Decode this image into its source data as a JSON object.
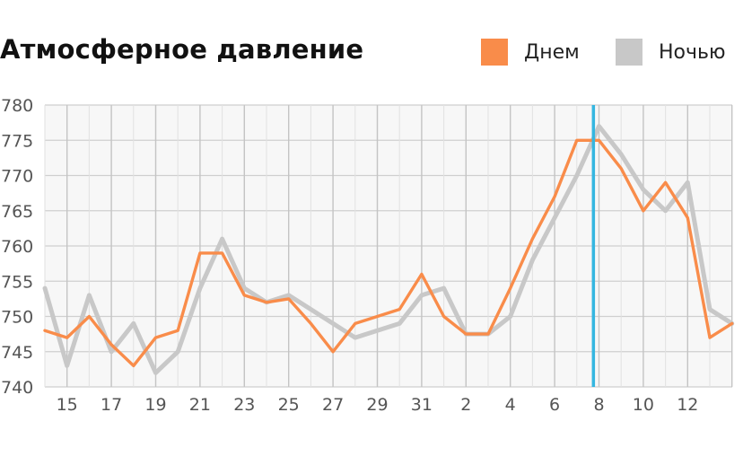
{
  "chart_data": {
    "type": "line",
    "title": "Атмосферное давление",
    "xlabel": "",
    "ylabel": "",
    "ylim": [
      740,
      780
    ],
    "yticks": [
      740,
      745,
      750,
      755,
      760,
      765,
      770,
      775,
      780
    ],
    "grid": true,
    "legend": "top-right",
    "x": [
      "14",
      "15",
      "16",
      "17",
      "18",
      "19",
      "20",
      "21",
      "22",
      "23",
      "24",
      "25",
      "26",
      "27",
      "28",
      "29",
      "30",
      "31",
      "1",
      "2",
      "3",
      "4",
      "5",
      "6",
      "7",
      "8",
      "9",
      "10",
      "11",
      "12",
      "13",
      "14"
    ],
    "xtick_labels": [
      "15",
      "17",
      "19",
      "21",
      "23",
      "25",
      "27",
      "29",
      "31",
      "2",
      "4",
      "6",
      "8",
      "10",
      "12"
    ],
    "current_index": 24.75,
    "series": [
      {
        "name": "Днем",
        "color": "#f98c4a",
        "values": [
          748,
          747,
          750,
          746,
          743,
          747,
          748,
          759,
          759,
          753,
          752,
          752.5,
          749,
          745,
          749,
          750,
          751,
          756,
          750,
          747.5,
          747.5,
          754,
          761,
          767,
          775,
          775,
          771,
          765,
          769,
          764,
          747,
          749
        ]
      },
      {
        "name": "Ночью",
        "color": "#c8c8c8",
        "values": [
          754,
          743,
          753,
          745,
          749,
          742,
          745,
          754,
          761,
          754,
          752,
          753,
          751,
          749,
          747,
          748,
          749,
          753,
          754,
          747.5,
          747.5,
          750,
          758,
          764,
          770,
          777,
          773,
          768,
          765,
          769,
          751,
          749
        ]
      }
    ]
  }
}
